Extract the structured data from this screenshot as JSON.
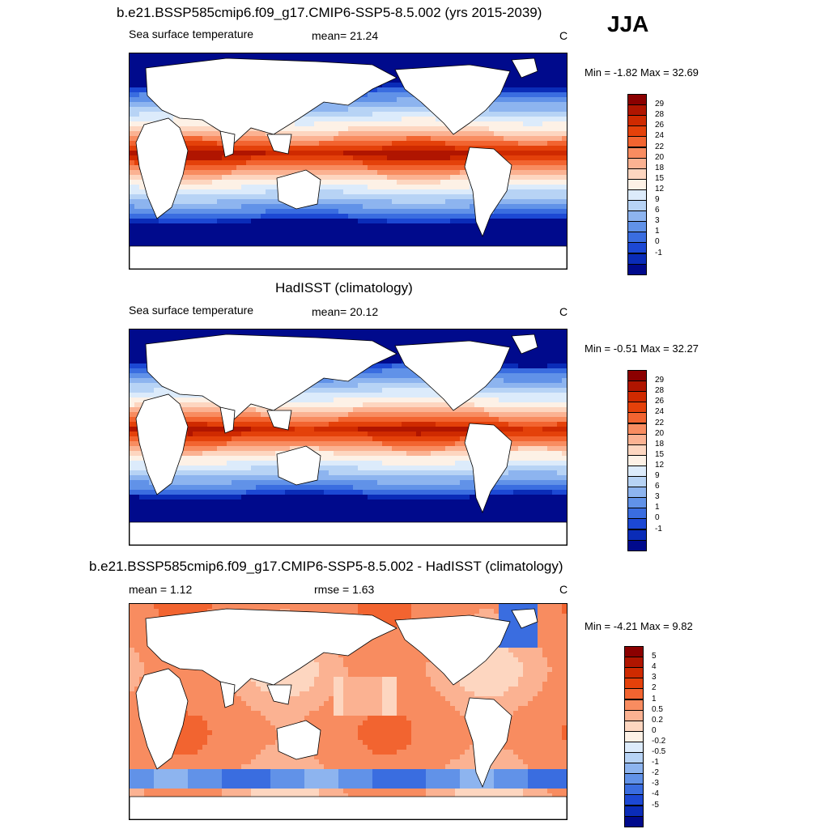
{
  "season": "JJA",
  "panels": [
    {
      "title": "b.e21.BSSP585cmip6.f09_g17.CMIP6-SSP5-8.5.002 (yrs 2015-2039)",
      "left_label": "Sea surface temperature",
      "center_label": "mean=  21.24",
      "units": "C",
      "minmax": "Min =  -1.82 Max =  32.69",
      "kind": "sst",
      "colorbar": {
        "labels": [
          "29",
          "28",
          "26",
          "24",
          "22",
          "20",
          "18",
          "15",
          "12",
          "9",
          "6",
          "3",
          "1",
          "0",
          "-1"
        ],
        "colors": [
          "#8b0000",
          "#b01500",
          "#cf2a00",
          "#e4410a",
          "#f26430",
          "#f88c60",
          "#fbb292",
          "#fdd6c0",
          "#fdf1e6",
          "#dcebfb",
          "#b7d3f5",
          "#8db4ef",
          "#6192e8",
          "#3a6de0",
          "#1c48d4",
          "#0a2cb8",
          "#000a8c"
        ],
        "values": [
          29,
          28,
          26,
          24,
          22,
          20,
          18,
          15,
          12,
          9,
          6,
          3,
          1,
          0,
          -1
        ]
      }
    },
    {
      "title": "HadISST (climatology)",
      "left_label": "Sea surface temperature",
      "center_label": "mean=  20.12",
      "units": "C",
      "minmax": "Min =  -0.51 Max =  32.27",
      "kind": "sst",
      "colorbar": {
        "labels": [
          "29",
          "28",
          "26",
          "24",
          "22",
          "20",
          "18",
          "15",
          "12",
          "9",
          "6",
          "3",
          "1",
          "0",
          "-1"
        ],
        "colors": [
          "#8b0000",
          "#b01500",
          "#cf2a00",
          "#e4410a",
          "#f26430",
          "#f88c60",
          "#fbb292",
          "#fdd6c0",
          "#fdf1e6",
          "#dcebfb",
          "#b7d3f5",
          "#8db4ef",
          "#6192e8",
          "#3a6de0",
          "#1c48d4",
          "#0a2cb8",
          "#000a8c"
        ],
        "values": [
          29,
          28,
          26,
          24,
          22,
          20,
          18,
          15,
          12,
          9,
          6,
          3,
          1,
          0,
          -1
        ]
      }
    },
    {
      "title": "b.e21.BSSP585cmip6.f09_g17.CMIP6-SSP5-8.5.002 - HadISST (climatology)",
      "left_label": "mean =   1.12",
      "center_label": "rmse =   1.63",
      "units": "C",
      "minmax": "Min =  -4.21 Max =   9.82",
      "kind": "diff",
      "colorbar": {
        "labels": [
          "5",
          "4",
          "3",
          "2",
          "1",
          "0.5",
          "0.2",
          "0",
          "-0.2",
          "-0.5",
          "-1",
          "-2",
          "-3",
          "-4",
          "-5"
        ],
        "colors": [
          "#8b0000",
          "#b01500",
          "#cf2a00",
          "#e4410a",
          "#f26430",
          "#f88c60",
          "#fbb292",
          "#fdd6c0",
          "#fdf1e6",
          "#dcebfb",
          "#b7d3f5",
          "#8db4ef",
          "#6192e8",
          "#3a6de0",
          "#1c48d4",
          "#0a2cb8",
          "#000a8c"
        ],
        "values": [
          5,
          4,
          3,
          2,
          1,
          0.5,
          0.2,
          0,
          -0.2,
          -0.5,
          -1,
          -2,
          -3,
          -4,
          -5
        ]
      }
    }
  ]
}
